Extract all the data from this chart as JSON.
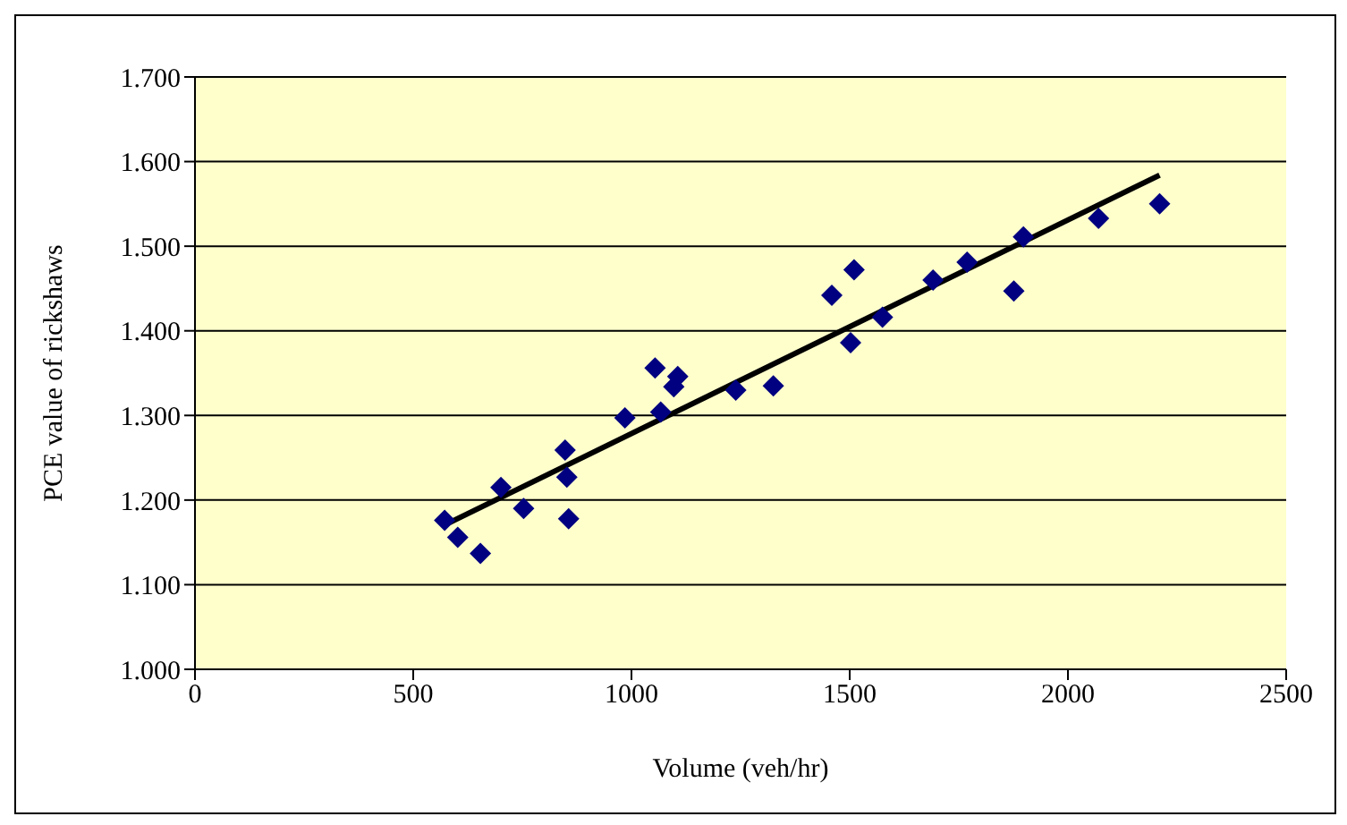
{
  "chart_data": {
    "type": "scatter",
    "xlabel": "Volume (veh/hr)",
    "ylabel": "PCE value of rickshaws",
    "xlim": [
      0,
      2500
    ],
    "xticks": [
      0,
      500,
      1000,
      1500,
      2000,
      2500
    ],
    "ylim": [
      1.0,
      1.7
    ],
    "yticks": [
      {
        "value": 1.0,
        "label": "1.000"
      },
      {
        "value": 1.1,
        "label": "1.100"
      },
      {
        "value": 1.2,
        "label": "1.200"
      },
      {
        "value": 1.3,
        "label": "1.300"
      },
      {
        "value": 1.4,
        "label": "1.400"
      },
      {
        "value": 1.5,
        "label": "1.500"
      },
      {
        "value": 1.6,
        "label": "1.600"
      },
      {
        "value": 1.7,
        "label": "1.700"
      }
    ],
    "grid": "y",
    "legend": false,
    "marker": "diamond",
    "series": [
      {
        "type": "scatter",
        "color": "#000080",
        "x": [
          572,
          602,
          654,
          701,
          753,
          848,
          852,
          856,
          985,
          1054,
          1067,
          1097,
          1106,
          1239,
          1325,
          1459,
          1502,
          1510,
          1575,
          1691,
          1769,
          1876,
          1898,
          2070,
          2210
        ],
        "values": [
          1.176,
          1.156,
          1.137,
          1.215,
          1.19,
          1.259,
          1.227,
          1.178,
          1.297,
          1.356,
          1.304,
          1.334,
          1.346,
          1.33,
          1.335,
          1.442,
          1.386,
          1.472,
          1.416,
          1.46,
          1.481,
          1.447,
          1.511,
          1.533,
          1.55
        ]
      },
      {
        "type": "line",
        "color": "#000000",
        "marker": "none",
        "x": [
          570,
          2210
        ],
        "values": [
          1.17,
          1.584
        ]
      }
    ]
  }
}
